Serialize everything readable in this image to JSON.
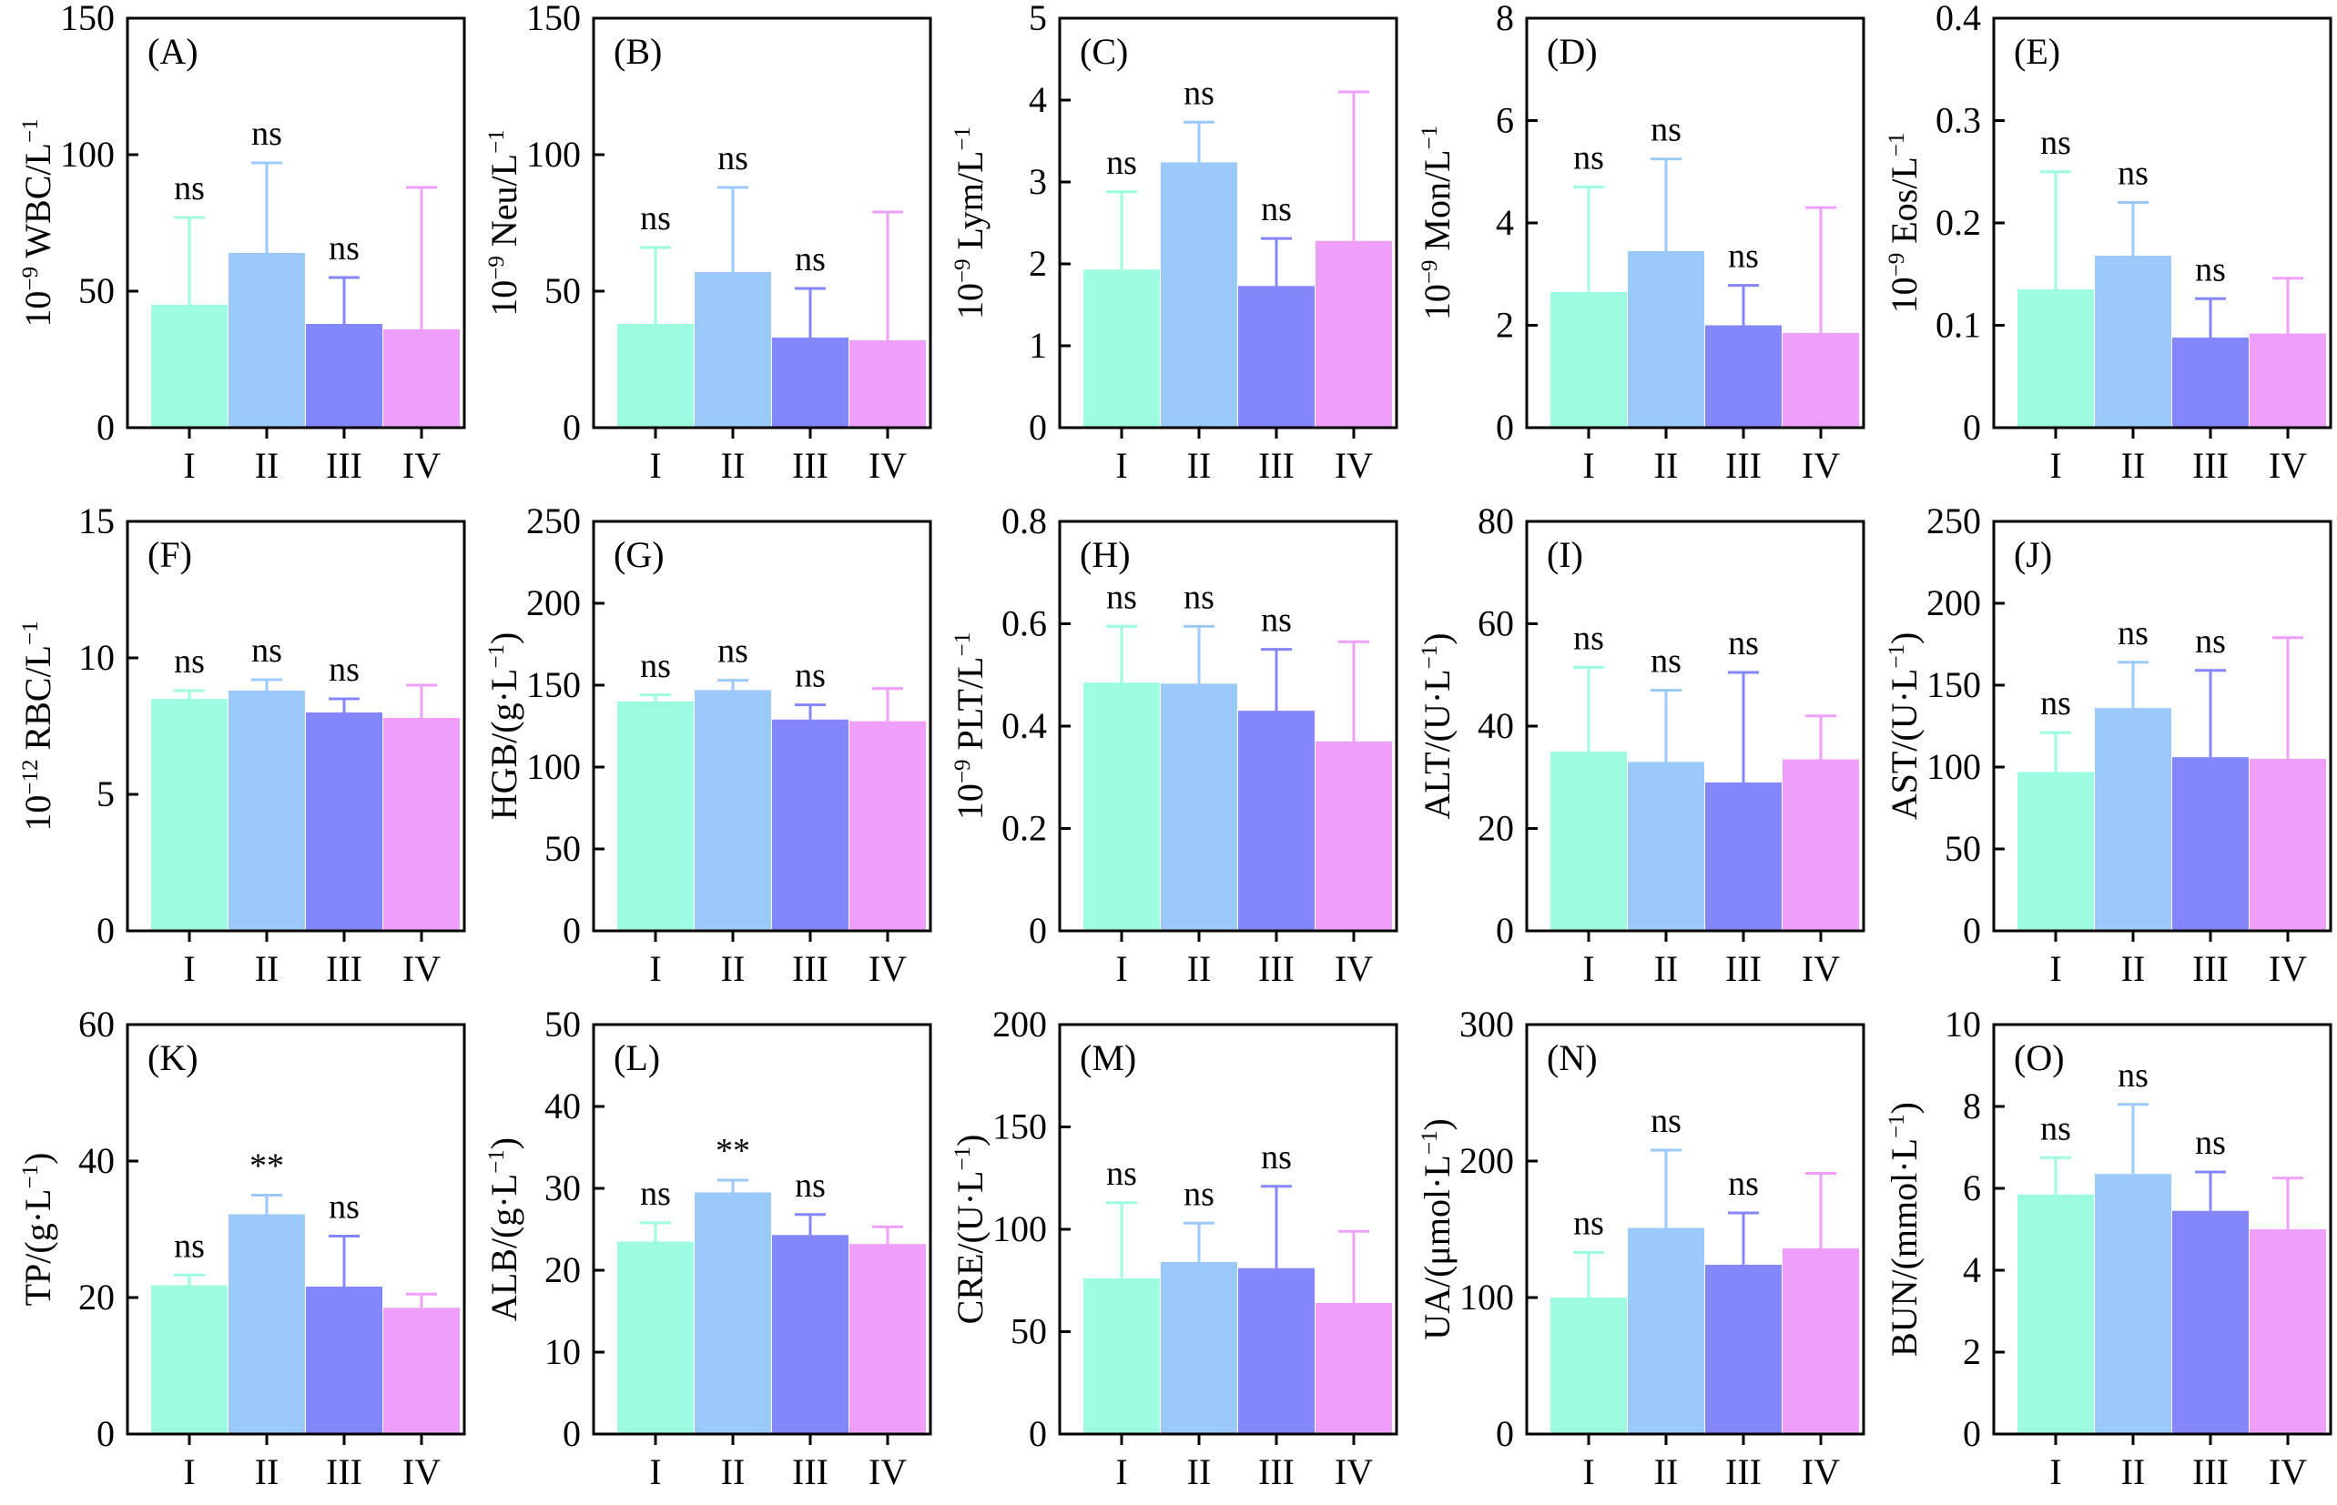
{
  "colors": [
    "#9dfbe1",
    "#9bc9fb",
    "#8486fb",
    "#ef9ffb"
  ],
  "chart_data": [
    {
      "type": "bar",
      "label": "(A)",
      "ylabel_pre": "10",
      "ylabel_exp": "−9",
      "ylabel_main": " WBC/L",
      "ylabel_exp2": "−1",
      "yticks": [
        0,
        50,
        100,
        150
      ],
      "ylim": [
        0,
        150
      ],
      "categories": [
        "I",
        "II",
        "III",
        "IV"
      ],
      "values": [
        45,
        64,
        38,
        36
      ],
      "errors": [
        77,
        97,
        55,
        88
      ],
      "sig": [
        "ns",
        "ns",
        "ns",
        ""
      ]
    },
    {
      "type": "bar",
      "label": "(B)",
      "ylabel_pre": "10",
      "ylabel_exp": "−9",
      "ylabel_main": " Neu/L",
      "ylabel_exp2": "−1",
      "yticks": [
        0,
        50,
        100,
        150
      ],
      "ylim": [
        0,
        150
      ],
      "categories": [
        "I",
        "II",
        "III",
        "IV"
      ],
      "values": [
        38,
        57,
        33,
        32
      ],
      "errors": [
        66,
        88,
        51,
        79
      ],
      "sig": [
        "ns",
        "ns",
        "ns",
        ""
      ]
    },
    {
      "type": "bar",
      "label": "(C)",
      "ylabel_pre": "10",
      "ylabel_exp": "−9",
      "ylabel_main": " Lym/L",
      "ylabel_exp2": "−1",
      "yticks": [
        0,
        1,
        2,
        3,
        4,
        5
      ],
      "ylim": [
        0,
        5
      ],
      "categories": [
        "I",
        "II",
        "III",
        "IV"
      ],
      "values": [
        1.93,
        3.24,
        1.73,
        2.28
      ],
      "errors": [
        2.88,
        3.73,
        2.31,
        4.1
      ],
      "sig": [
        "ns",
        "ns",
        "ns",
        ""
      ]
    },
    {
      "type": "bar",
      "label": "(D)",
      "ylabel_pre": "10",
      "ylabel_exp": "−9",
      "ylabel_main": " Mon/L",
      "ylabel_exp2": "−1",
      "yticks": [
        0,
        2,
        4,
        6,
        8
      ],
      "ylim": [
        0,
        8
      ],
      "categories": [
        "I",
        "II",
        "III",
        "IV"
      ],
      "values": [
        2.65,
        3.45,
        2.0,
        1.85
      ],
      "errors": [
        4.7,
        5.25,
        2.78,
        4.3
      ],
      "sig": [
        "ns",
        "ns",
        "ns",
        ""
      ]
    },
    {
      "type": "bar",
      "label": "(E)",
      "ylabel_pre": "10",
      "ylabel_exp": "−9",
      "ylabel_main": " Eos/L",
      "ylabel_exp2": "−1",
      "yticks": [
        0,
        0.1,
        0.2,
        0.3,
        0.4
      ],
      "ylim": [
        0,
        0.4
      ],
      "categories": [
        "I",
        "II",
        "III",
        "IV"
      ],
      "values": [
        0.135,
        0.168,
        0.088,
        0.092
      ],
      "errors": [
        0.25,
        0.22,
        0.126,
        0.146
      ],
      "sig": [
        "ns",
        "ns",
        "ns",
        ""
      ]
    },
    {
      "type": "bar",
      "label": "(F)",
      "ylabel_pre": "10",
      "ylabel_exp": "−12",
      "ylabel_main": " RBC/L",
      "ylabel_exp2": "−1",
      "yticks": [
        0,
        5,
        10,
        15
      ],
      "ylim": [
        0,
        15
      ],
      "categories": [
        "I",
        "II",
        "III",
        "IV"
      ],
      "values": [
        8.5,
        8.8,
        8.0,
        7.8
      ],
      "errors": [
        8.8,
        9.2,
        8.5,
        9.0
      ],
      "sig": [
        "ns",
        "ns",
        "ns",
        ""
      ]
    },
    {
      "type": "bar",
      "label": "(G)",
      "ylabel_pre": "",
      "ylabel_exp": "",
      "ylabel_main": "HGB/(g·L",
      "ylabel_exp2": "−1",
      "ylabel_post": ")",
      "yticks": [
        0,
        50,
        100,
        150,
        200,
        250
      ],
      "ylim": [
        0,
        250
      ],
      "categories": [
        "I",
        "II",
        "III",
        "IV"
      ],
      "values": [
        140,
        147,
        129,
        128
      ],
      "errors": [
        144,
        153,
        138,
        148
      ],
      "sig": [
        "ns",
        "ns",
        "ns",
        ""
      ]
    },
    {
      "type": "bar",
      "label": "(H)",
      "ylabel_pre": "10",
      "ylabel_exp": "−9",
      "ylabel_main": " PLT/L",
      "ylabel_exp2": "−1",
      "yticks": [
        0,
        0.2,
        0.4,
        0.6,
        0.8
      ],
      "ylim": [
        0,
        0.8
      ],
      "categories": [
        "I",
        "II",
        "III",
        "IV"
      ],
      "values": [
        0.485,
        0.483,
        0.43,
        0.37
      ],
      "errors": [
        0.595,
        0.595,
        0.55,
        0.565
      ],
      "sig": [
        "ns",
        "ns",
        "ns",
        ""
      ]
    },
    {
      "type": "bar",
      "label": "(I)",
      "ylabel_pre": "",
      "ylabel_exp": "",
      "ylabel_main": "ALT/(U·L",
      "ylabel_exp2": "−1",
      "ylabel_post": ")",
      "yticks": [
        0,
        20,
        40,
        60,
        80
      ],
      "ylim": [
        0,
        80
      ],
      "categories": [
        "I",
        "II",
        "III",
        "IV"
      ],
      "values": [
        35,
        33,
        29,
        33.5
      ],
      "errors": [
        51.5,
        47,
        50.5,
        42
      ],
      "sig": [
        "ns",
        "ns",
        "ns",
        ""
      ]
    },
    {
      "type": "bar",
      "label": "(J)",
      "ylabel_pre": "",
      "ylabel_exp": "",
      "ylabel_main": "AST/(U·L",
      "ylabel_exp2": "−1",
      "ylabel_post": ")",
      "yticks": [
        0,
        50,
        100,
        150,
        200,
        250
      ],
      "ylim": [
        0,
        250
      ],
      "categories": [
        "I",
        "II",
        "III",
        "IV"
      ],
      "values": [
        97,
        136,
        106,
        105
      ],
      "errors": [
        121,
        164,
        159,
        179
      ],
      "sig": [
        "ns",
        "ns",
        "ns",
        ""
      ]
    },
    {
      "type": "bar",
      "label": "(K)",
      "ylabel_pre": "",
      "ylabel_exp": "",
      "ylabel_main": "TP/(g·L",
      "ylabel_exp2": "−1",
      "ylabel_post": ")",
      "yticks": [
        0,
        20,
        40,
        60
      ],
      "ylim": [
        0,
        60
      ],
      "categories": [
        "I",
        "II",
        "III",
        "IV"
      ],
      "values": [
        21.8,
        32.2,
        21.6,
        18.5
      ],
      "errors": [
        23.3,
        35.0,
        29.0,
        20.5
      ],
      "sig": [
        "ns",
        "**",
        "ns",
        ""
      ]
    },
    {
      "type": "bar",
      "label": "(L)",
      "ylabel_pre": "",
      "ylabel_exp": "",
      "ylabel_main": "ALB/(g·L",
      "ylabel_exp2": "−1",
      "ylabel_post": ")",
      "yticks": [
        0,
        10,
        20,
        30,
        40,
        50
      ],
      "ylim": [
        0,
        50
      ],
      "categories": [
        "I",
        "II",
        "III",
        "IV"
      ],
      "values": [
        23.5,
        29.5,
        24.3,
        23.2
      ],
      "errors": [
        25.8,
        31.0,
        26.8,
        25.3
      ],
      "sig": [
        "ns",
        "**",
        "ns",
        ""
      ]
    },
    {
      "type": "bar",
      "label": "(M)",
      "ylabel_pre": "",
      "ylabel_exp": "",
      "ylabel_main": "CRE/(U·L",
      "ylabel_exp2": "−1",
      "ylabel_post": ")",
      "yticks": [
        0,
        50,
        100,
        150,
        200
      ],
      "ylim": [
        0,
        200
      ],
      "categories": [
        "I",
        "II",
        "III",
        "IV"
      ],
      "values": [
        76,
        84,
        81,
        64
      ],
      "errors": [
        113,
        103,
        121,
        99
      ],
      "sig": [
        "ns",
        "ns",
        "ns",
        ""
      ]
    },
    {
      "type": "bar",
      "label": "(N)",
      "ylabel_pre": "",
      "ylabel_exp": "",
      "ylabel_main": "UA/(μmol·L",
      "ylabel_exp2": "−1",
      "ylabel_post": ")",
      "yticks": [
        0,
        100,
        200,
        300
      ],
      "ylim": [
        0,
        300
      ],
      "categories": [
        "I",
        "II",
        "III",
        "IV"
      ],
      "values": [
        100,
        151,
        124,
        136
      ],
      "errors": [
        133,
        208,
        162,
        191
      ],
      "sig": [
        "ns",
        "ns",
        "ns",
        ""
      ]
    },
    {
      "type": "bar",
      "label": "(O)",
      "ylabel_pre": "",
      "ylabel_exp": "",
      "ylabel_main": "BUN/(mmol·L",
      "ylabel_exp2": "−1",
      "ylabel_post": ")",
      "yticks": [
        0,
        2,
        4,
        6,
        8,
        10
      ],
      "ylim": [
        0,
        10
      ],
      "categories": [
        "I",
        "II",
        "III",
        "IV"
      ],
      "values": [
        5.85,
        6.35,
        5.45,
        5.0
      ],
      "errors": [
        6.75,
        8.05,
        6.4,
        6.25
      ],
      "sig": [
        "ns",
        "ns",
        "ns",
        ""
      ]
    }
  ]
}
